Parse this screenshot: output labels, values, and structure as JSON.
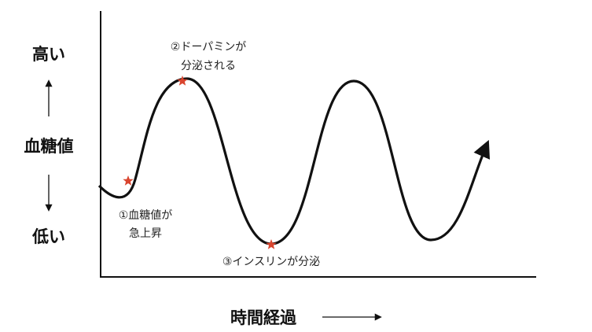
{
  "y_axis": {
    "high": "高い",
    "label": "血糖値",
    "low": "低い"
  },
  "x_axis": {
    "label": "時間経過"
  },
  "annotations": [
    {
      "lines": [
        "①血糖値が",
        "急上昇"
      ]
    },
    {
      "lines": [
        "②ドーパミンが",
        "分泌される"
      ]
    },
    {
      "lines": [
        "③インスリンが分泌"
      ]
    }
  ]
}
